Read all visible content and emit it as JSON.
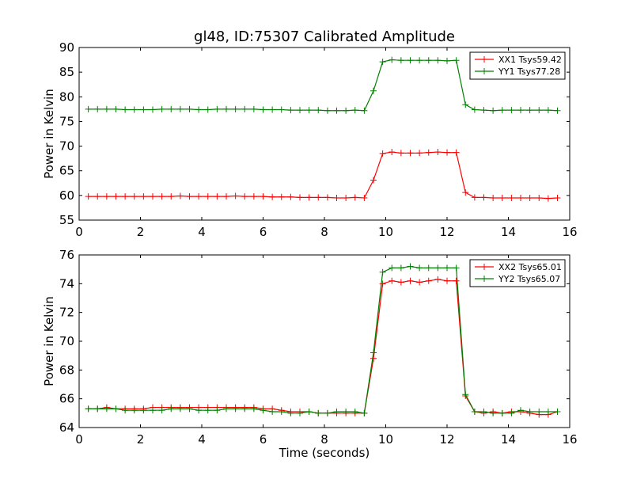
{
  "figure": {
    "title": "gl48, ID:75307 Calibrated Amplitude",
    "xlabel": "Time (seconds)"
  },
  "chart_data": [
    {
      "type": "line",
      "ylabel": "Power in Kelvin",
      "xlim": [
        0,
        16
      ],
      "ylim": [
        55,
        90
      ],
      "xticks": [
        0,
        2,
        4,
        6,
        8,
        10,
        12,
        14,
        16
      ],
      "yticks": [
        55,
        60,
        65,
        70,
        75,
        80,
        85,
        90
      ],
      "legend_position": "top-right",
      "x": [
        0.3,
        0.6,
        0.9,
        1.2,
        1.5,
        1.8,
        2.1,
        2.4,
        2.7,
        3.0,
        3.3,
        3.6,
        3.9,
        4.2,
        4.5,
        4.8,
        5.1,
        5.4,
        5.7,
        6.0,
        6.3,
        6.6,
        6.9,
        7.2,
        7.5,
        7.8,
        8.1,
        8.4,
        8.7,
        9.0,
        9.3,
        9.6,
        9.9,
        10.2,
        10.5,
        10.8,
        11.1,
        11.4,
        11.7,
        12.0,
        12.3,
        12.6,
        12.9,
        13.2,
        13.5,
        13.8,
        14.1,
        14.4,
        14.7,
        15.0,
        15.3,
        15.6
      ],
      "series": [
        {
          "name": "XX1 Tsys59.42",
          "color": "#ff0000",
          "values": [
            59.8,
            59.8,
            59.8,
            59.8,
            59.8,
            59.8,
            59.8,
            59.8,
            59.8,
            59.8,
            59.9,
            59.8,
            59.8,
            59.8,
            59.8,
            59.8,
            59.9,
            59.8,
            59.8,
            59.8,
            59.7,
            59.7,
            59.7,
            59.6,
            59.6,
            59.6,
            59.6,
            59.5,
            59.5,
            59.6,
            59.5,
            63.1,
            68.5,
            68.8,
            68.6,
            68.6,
            68.6,
            68.7,
            68.8,
            68.7,
            68.7,
            60.6,
            59.6,
            59.6,
            59.5,
            59.5,
            59.5,
            59.5,
            59.5,
            59.5,
            59.4,
            59.5
          ]
        },
        {
          "name": "YY1 Tsys77.28",
          "color": "#008000",
          "values": [
            77.5,
            77.5,
            77.5,
            77.5,
            77.4,
            77.4,
            77.4,
            77.4,
            77.5,
            77.5,
            77.5,
            77.5,
            77.4,
            77.4,
            77.5,
            77.5,
            77.5,
            77.5,
            77.5,
            77.4,
            77.4,
            77.4,
            77.3,
            77.3,
            77.3,
            77.3,
            77.2,
            77.2,
            77.2,
            77.3,
            77.2,
            81.2,
            87.1,
            87.5,
            87.4,
            87.4,
            87.4,
            87.4,
            87.4,
            87.3,
            87.4,
            78.4,
            77.4,
            77.3,
            77.2,
            77.3,
            77.3,
            77.3,
            77.3,
            77.3,
            77.3,
            77.2
          ]
        }
      ]
    },
    {
      "type": "line",
      "ylabel": "Power in Kelvin",
      "xlim": [
        0,
        16
      ],
      "ylim": [
        64,
        76
      ],
      "xticks": [
        0,
        2,
        4,
        6,
        8,
        10,
        12,
        14,
        16
      ],
      "yticks": [
        64,
        66,
        68,
        70,
        72,
        74,
        76
      ],
      "legend_position": "top-right",
      "x": [
        0.3,
        0.6,
        0.9,
        1.2,
        1.5,
        1.8,
        2.1,
        2.4,
        2.7,
        3.0,
        3.3,
        3.6,
        3.9,
        4.2,
        4.5,
        4.8,
        5.1,
        5.4,
        5.7,
        6.0,
        6.3,
        6.6,
        6.9,
        7.2,
        7.5,
        7.8,
        8.1,
        8.4,
        8.7,
        9.0,
        9.3,
        9.6,
        9.9,
        10.2,
        10.5,
        10.8,
        11.1,
        11.4,
        11.7,
        12.0,
        12.3,
        12.6,
        12.9,
        13.2,
        13.5,
        13.8,
        14.1,
        14.4,
        14.7,
        15.0,
        15.3,
        15.6
      ],
      "series": [
        {
          "name": "XX2 Tsys65.01",
          "color": "#ff0000",
          "values": [
            65.3,
            65.3,
            65.4,
            65.3,
            65.3,
            65.3,
            65.3,
            65.4,
            65.4,
            65.4,
            65.4,
            65.4,
            65.4,
            65.4,
            65.4,
            65.4,
            65.4,
            65.4,
            65.4,
            65.3,
            65.3,
            65.2,
            65.1,
            65.1,
            65.1,
            65.0,
            65.0,
            65.0,
            65.0,
            65.0,
            65.0,
            68.8,
            74.0,
            74.2,
            74.1,
            74.2,
            74.1,
            74.2,
            74.3,
            74.2,
            74.2,
            66.2,
            65.1,
            65.0,
            65.1,
            65.0,
            65.1,
            65.1,
            65.0,
            64.9,
            64.9,
            65.1
          ]
        },
        {
          "name": "YY2 Tsys65.07",
          "color": "#008000",
          "values": [
            65.3,
            65.3,
            65.3,
            65.3,
            65.2,
            65.2,
            65.2,
            65.2,
            65.2,
            65.3,
            65.3,
            65.3,
            65.2,
            65.2,
            65.2,
            65.3,
            65.3,
            65.3,
            65.3,
            65.2,
            65.1,
            65.1,
            65.0,
            65.0,
            65.1,
            65.0,
            65.0,
            65.1,
            65.1,
            65.1,
            65.0,
            69.2,
            74.8,
            75.1,
            75.1,
            75.2,
            75.1,
            75.1,
            75.1,
            75.1,
            75.1,
            66.3,
            65.1,
            65.1,
            65.0,
            65.0,
            65.0,
            65.2,
            65.1,
            65.1,
            65.1,
            65.1
          ]
        }
      ]
    }
  ]
}
